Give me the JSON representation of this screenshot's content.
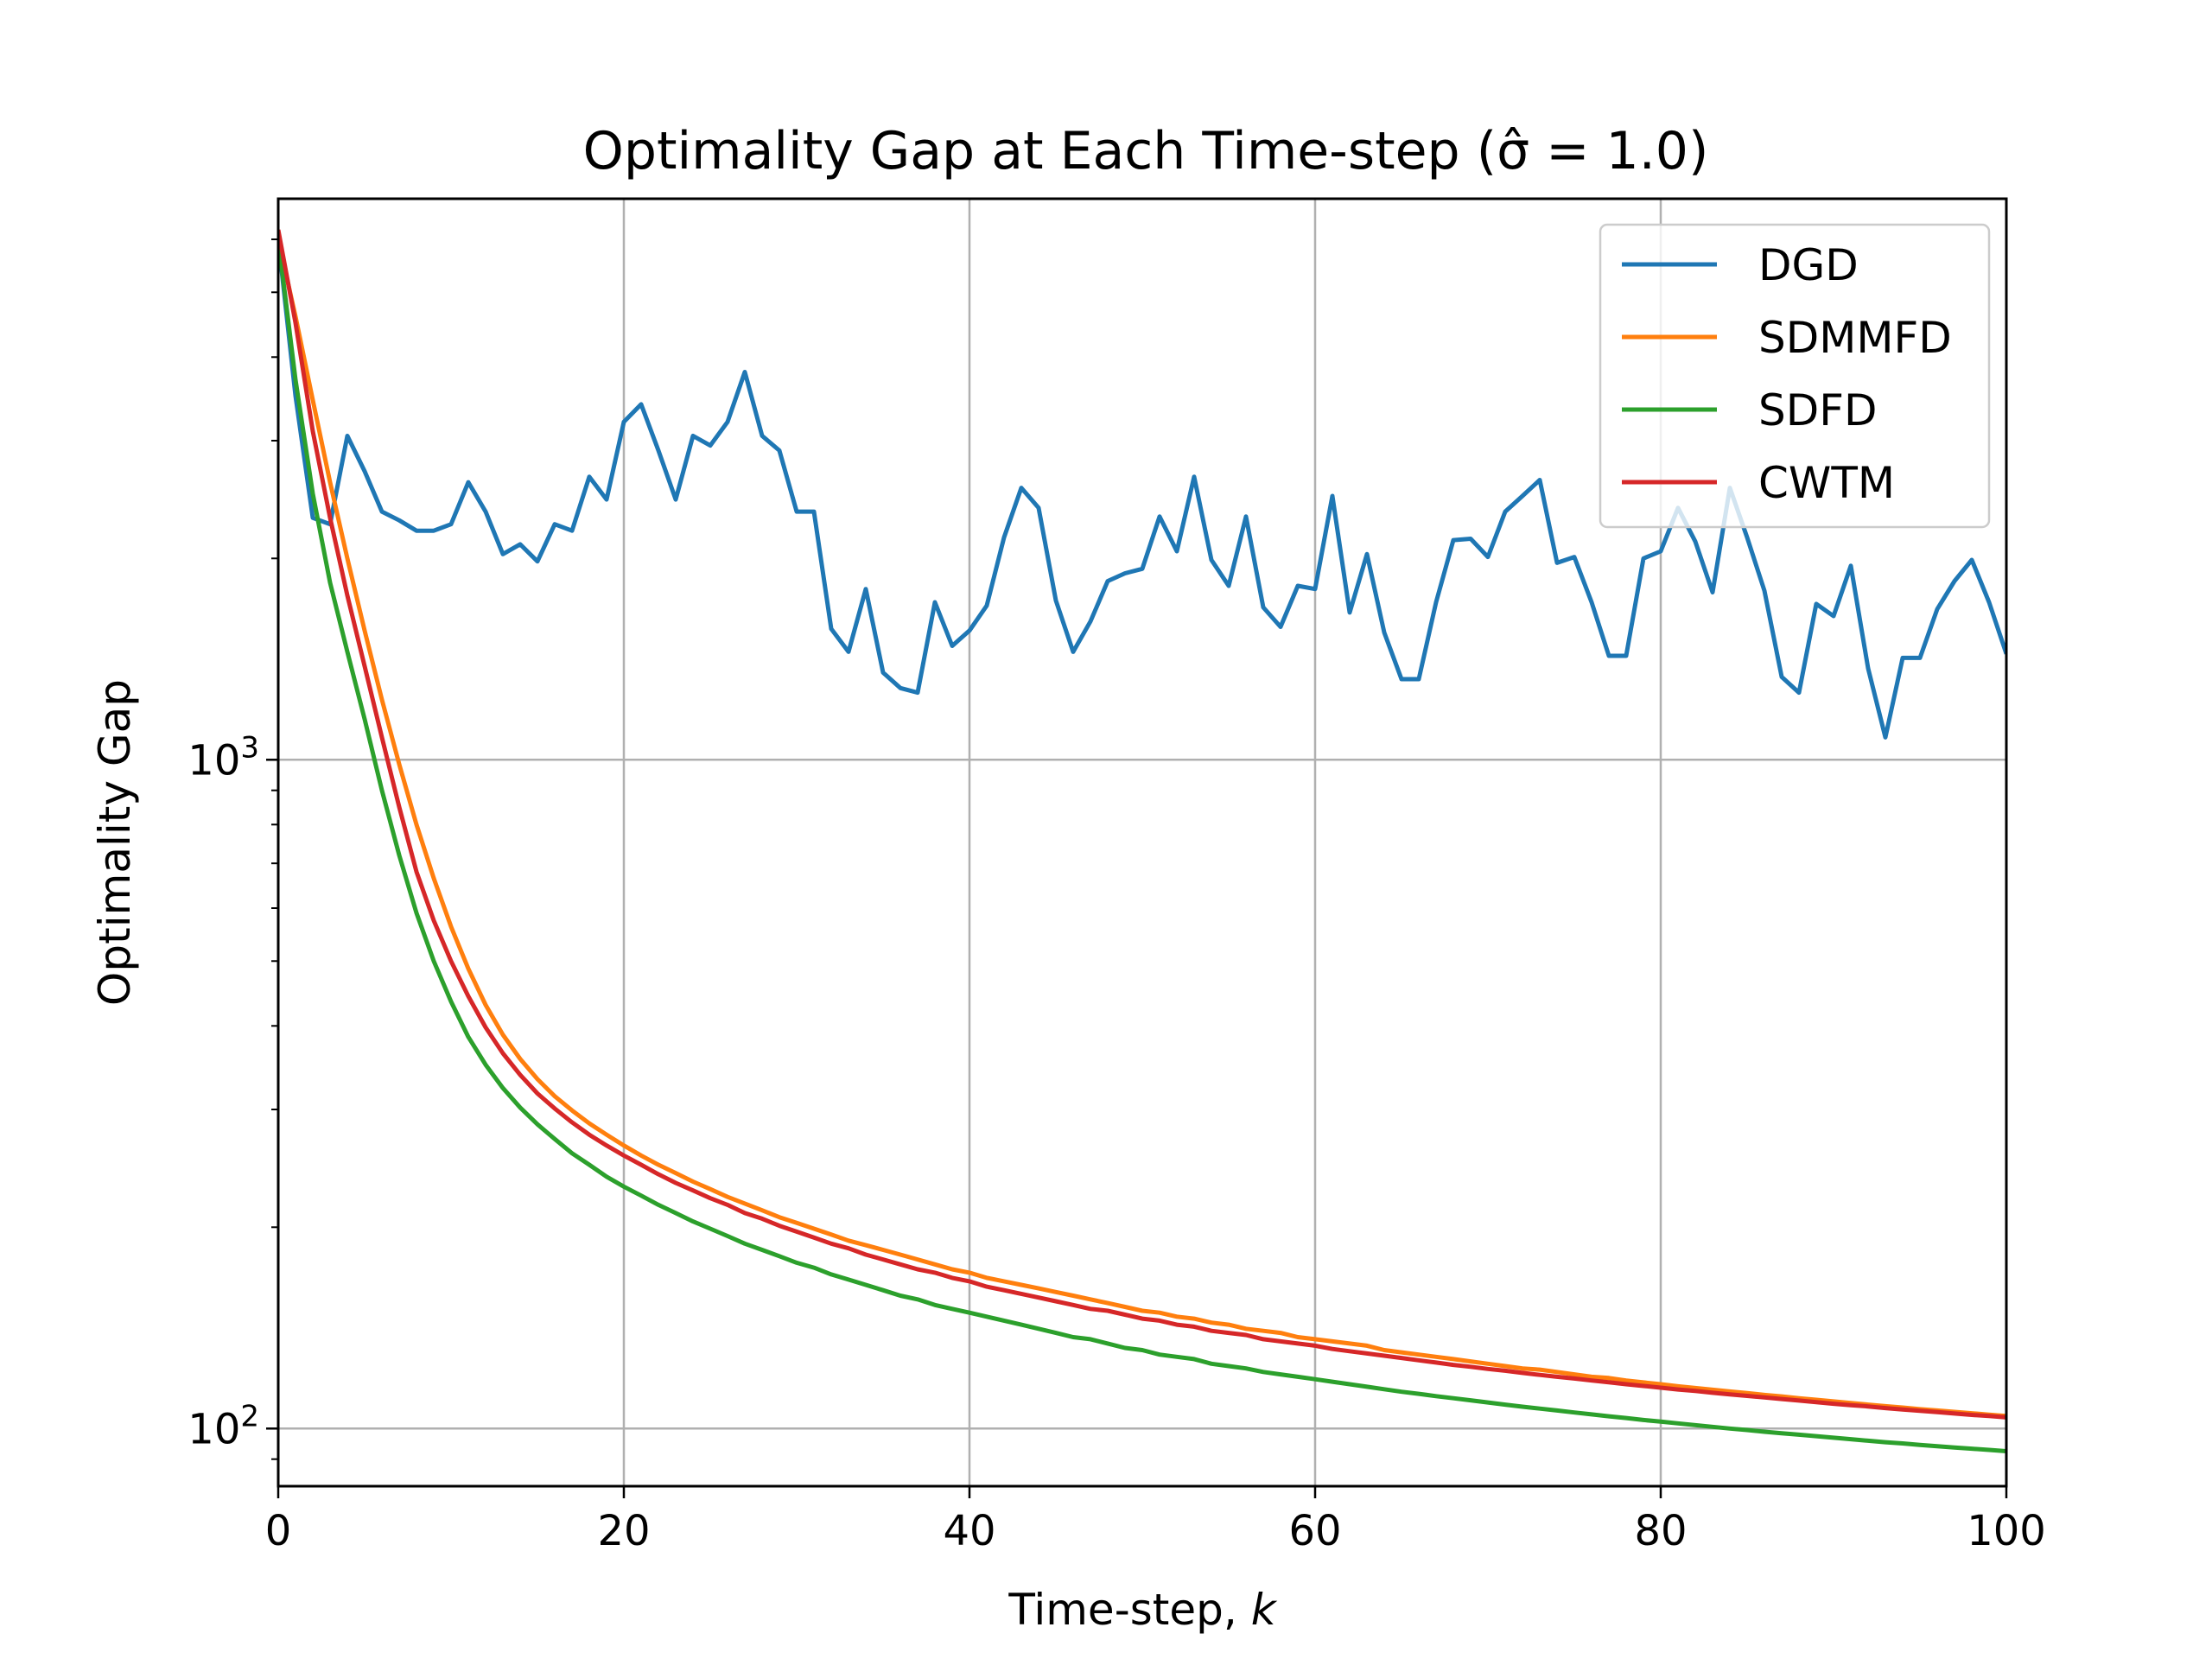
{
  "chart_data": {
    "type": "line",
    "title": "Optimality Gap at Each Time-step (σ̂ = 1.0)",
    "xlabel": "Time-step, k",
    "ylabel": "Optimality Gap",
    "xscale": "linear",
    "yscale": "log",
    "xlim": [
      0,
      100
    ],
    "ylim": [
      82,
      6900
    ],
    "grid": true,
    "legend_position": "top-right",
    "x_ticks": [
      0,
      20,
      40,
      60,
      80,
      100
    ],
    "x_tick_labels": [
      "0",
      "20",
      "40",
      "60",
      "80",
      "100"
    ],
    "y_major_ticks": [
      100,
      1000
    ],
    "y_tick_labels": [
      {
        "base": "10",
        "exp": "2"
      },
      {
        "base": "10",
        "exp": "3"
      }
    ],
    "y_minor_ticks": [
      90,
      200,
      300,
      400,
      500,
      600,
      700,
      800,
      900,
      2000,
      3000,
      4000,
      5000,
      6000
    ],
    "series": [
      {
        "name": "DGD",
        "color": "#1f77b4",
        "values": [
          6000,
          3500,
          2300,
          2250,
          3050,
          2700,
          2350,
          2280,
          2200,
          2200,
          2250,
          2600,
          2350,
          2030,
          2100,
          1980,
          2250,
          2200,
          2650,
          2450,
          3200,
          3400,
          2900,
          2450,
          3050,
          2950,
          3200,
          3800,
          3050,
          2900,
          2350,
          2350,
          1570,
          1450,
          1800,
          1350,
          1280,
          1260,
          1720,
          1480,
          1560,
          1700,
          2150,
          2550,
          2380,
          1730,
          1450,
          1610,
          1850,
          1900,
          1930,
          2310,
          2050,
          2650,
          1990,
          1820,
          2310,
          1690,
          1580,
          1820,
          1800,
          2480,
          1660,
          2030,
          1550,
          1320,
          1320,
          1720,
          2130,
          2140,
          2010,
          2350,
          2480,
          2620,
          1970,
          2010,
          1720,
          1430,
          1430,
          2000,
          2050,
          2380,
          2120,
          1780,
          2550,
          2150,
          1790,
          1330,
          1260,
          1710,
          1640,
          1950,
          1370,
          1080,
          1420,
          1420,
          1680,
          1850,
          1990,
          1720,
          1440
        ]
      },
      {
        "name": "SDMMFD",
        "color": "#ff7f0e",
        "values": [
          6000,
          4600,
          3450,
          2600,
          2000,
          1560,
          1230,
          985,
          800,
          665,
          563,
          487,
          430,
          388,
          357,
          333,
          314,
          299,
          286,
          275,
          265,
          256,
          248,
          241,
          234,
          228,
          222,
          217,
          212,
          207,
          203,
          199,
          195,
          191,
          188,
          185,
          182,
          179,
          176,
          173,
          171,
          168,
          166,
          164,
          162,
          160,
          158,
          156,
          154,
          152,
          150,
          149,
          147,
          146,
          144,
          143,
          141,
          140,
          139,
          137,
          136,
          135,
          134,
          133,
          131,
          130,
          129,
          128,
          127,
          126,
          125,
          124,
          123,
          122.5,
          121.5,
          120.5,
          119.5,
          119,
          118,
          117.2,
          116.5,
          115.7,
          115,
          114.3,
          113.6,
          113,
          112.3,
          111.7,
          111,
          110.4,
          109.8,
          109.2,
          108.6,
          108,
          107.5,
          106.9,
          106.4,
          105.9,
          105.4,
          104.9,
          104.4
        ]
      },
      {
        "name": "SDFD",
        "color": "#2ca02c",
        "values": [
          6000,
          3700,
          2500,
          1840,
          1450,
          1150,
          900,
          720,
          590,
          500,
          435,
          385,
          350,
          323,
          302,
          285,
          271,
          258,
          248,
          238,
          230,
          223,
          216,
          210,
          204,
          199,
          194,
          189,
          185,
          181,
          177,
          174,
          170,
          167,
          164,
          161,
          158,
          156,
          153,
          151,
          149,
          147,
          145,
          143,
          141,
          139,
          137,
          136,
          134,
          132,
          131,
          129,
          128,
          127,
          125,
          124,
          123,
          121.5,
          120.5,
          119.5,
          118.5,
          117.5,
          116.5,
          115.5,
          114.5,
          113.5,
          112.7,
          111.8,
          111,
          110.2,
          109.4,
          108.6,
          107.8,
          107.1,
          106.4,
          105.7,
          105,
          104.3,
          103.7,
          103,
          102.4,
          101.8,
          101.2,
          100.6,
          100,
          99.5,
          98.9,
          98.4,
          97.9,
          97.4,
          96.9,
          96.4,
          95.9,
          95.4,
          95,
          94.5,
          94.1,
          93.7,
          93.3,
          92.9,
          92.5
        ]
      },
      {
        "name": "CWTM",
        "color": "#d62728",
        "values": [
          6200,
          4500,
          3100,
          2300,
          1760,
          1380,
          1080,
          850,
          680,
          575,
          500,
          443,
          398,
          364,
          338,
          317,
          301,
          287,
          275,
          265,
          256,
          248,
          240,
          233,
          227,
          221,
          216,
          210,
          206,
          201,
          197,
          193,
          189,
          186,
          182,
          179,
          176,
          173,
          171,
          168,
          166,
          163,
          161,
          159,
          157,
          155,
          153,
          151,
          150,
          148,
          146,
          145,
          143,
          142,
          140,
          139,
          138,
          136,
          135,
          134,
          133,
          131.5,
          130.5,
          129.5,
          128.5,
          127.5,
          126.5,
          125.5,
          124.5,
          123.7,
          122.8,
          122,
          121.1,
          120.3,
          119.5,
          118.8,
          118,
          117.3,
          116.5,
          115.8,
          115.1,
          114.4,
          113.8,
          113.1,
          112.5,
          111.9,
          111.3,
          110.7,
          110.1,
          109.5,
          108.9,
          108.4,
          107.9,
          107.3,
          106.8,
          106.3,
          105.8,
          105.3,
          104.8,
          104.4,
          103.9
        ]
      }
    ]
  }
}
